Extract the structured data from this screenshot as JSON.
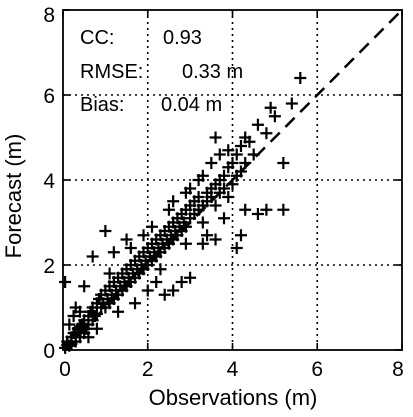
{
  "chart_data": {
    "type": "scatter",
    "xlabel": "Observations (m)",
    "ylabel": "Forecast (m)",
    "xlim": [
      0,
      8
    ],
    "ylim": [
      0,
      8
    ],
    "xticks": [
      "0",
      "2",
      "4",
      "6",
      "8"
    ],
    "yticks": [
      "0",
      "2",
      "4",
      "6",
      "8"
    ],
    "grid": "dotted",
    "marker": "plus",
    "reference_line": {
      "style": "dashed",
      "from": [
        0,
        0
      ],
      "to": [
        8,
        8
      ]
    },
    "stats": [
      {
        "label": "CC:",
        "value": "0.93"
      },
      {
        "label": "RMSE:",
        "value": "0.33 m"
      },
      {
        "label": "Bias:",
        "value": "0.04 m"
      }
    ],
    "points": [
      [
        0.05,
        0.05
      ],
      [
        0.1,
        0.12
      ],
      [
        0.1,
        0.2
      ],
      [
        0.15,
        0.1
      ],
      [
        0.2,
        0.3
      ],
      [
        0.2,
        0.15
      ],
      [
        0.25,
        0.4
      ],
      [
        0.3,
        0.2
      ],
      [
        0.3,
        0.35
      ],
      [
        0.35,
        0.5
      ],
      [
        0.4,
        0.3
      ],
      [
        0.4,
        0.55
      ],
      [
        0.45,
        0.6
      ],
      [
        0.5,
        0.4
      ],
      [
        0.5,
        0.7
      ],
      [
        0.55,
        0.5
      ],
      [
        0.6,
        0.8
      ],
      [
        0.6,
        0.6
      ],
      [
        0.65,
        0.9
      ],
      [
        0.7,
        0.7
      ],
      [
        0.7,
        1.0
      ],
      [
        0.75,
        0.8
      ],
      [
        0.8,
        1.1
      ],
      [
        0.8,
        0.85
      ],
      [
        0.85,
        1.2
      ],
      [
        0.9,
        1.0
      ],
      [
        0.9,
        1.3
      ],
      [
        0.95,
        1.1
      ],
      [
        1.0,
        1.4
      ],
      [
        1.0,
        1.0
      ],
      [
        1.05,
        1.2
      ],
      [
        1.1,
        1.5
      ],
      [
        1.1,
        1.1
      ],
      [
        1.15,
        1.3
      ],
      [
        1.2,
        1.6
      ],
      [
        1.2,
        1.2
      ],
      [
        1.25,
        1.4
      ],
      [
        1.3,
        1.7
      ],
      [
        1.3,
        1.3
      ],
      [
        1.35,
        1.5
      ],
      [
        1.4,
        1.8
      ],
      [
        1.4,
        1.4
      ],
      [
        1.45,
        1.6
      ],
      [
        1.5,
        1.9
      ],
      [
        1.5,
        1.5
      ],
      [
        1.55,
        1.7
      ],
      [
        1.6,
        2.0
      ],
      [
        1.6,
        1.6
      ],
      [
        1.65,
        1.8
      ],
      [
        1.7,
        2.1
      ],
      [
        1.7,
        1.7
      ],
      [
        1.75,
        1.9
      ],
      [
        1.8,
        2.2
      ],
      [
        1.8,
        1.8
      ],
      [
        1.85,
        2.0
      ],
      [
        1.9,
        2.3
      ],
      [
        1.9,
        1.9
      ],
      [
        1.95,
        2.1
      ],
      [
        2.0,
        2.4
      ],
      [
        2.0,
        2.0
      ],
      [
        2.05,
        2.2
      ],
      [
        2.1,
        2.5
      ],
      [
        2.1,
        2.1
      ],
      [
        2.15,
        2.3
      ],
      [
        2.2,
        2.6
      ],
      [
        2.2,
        2.2
      ],
      [
        2.25,
        2.4
      ],
      [
        2.3,
        2.7
      ],
      [
        2.3,
        2.3
      ],
      [
        2.35,
        2.5
      ],
      [
        2.4,
        2.8
      ],
      [
        2.4,
        2.4
      ],
      [
        2.45,
        2.6
      ],
      [
        2.5,
        2.9
      ],
      [
        2.5,
        2.5
      ],
      [
        2.55,
        2.7
      ],
      [
        2.6,
        3.0
      ],
      [
        2.6,
        2.6
      ],
      [
        2.65,
        2.8
      ],
      [
        2.7,
        3.1
      ],
      [
        2.7,
        2.7
      ],
      [
        2.75,
        2.9
      ],
      [
        2.8,
        3.2
      ],
      [
        2.8,
        2.8
      ],
      [
        2.85,
        3.0
      ],
      [
        2.9,
        3.3
      ],
      [
        2.9,
        2.9
      ],
      [
        3.0,
        3.1
      ],
      [
        3.0,
        3.4
      ],
      [
        3.1,
        3.2
      ],
      [
        3.1,
        3.5
      ],
      [
        3.2,
        3.3
      ],
      [
        3.2,
        3.6
      ],
      [
        3.3,
        3.4
      ],
      [
        3.3,
        3.0
      ],
      [
        3.4,
        3.7
      ],
      [
        3.4,
        3.5
      ],
      [
        3.5,
        3.8
      ],
      [
        3.5,
        3.6
      ],
      [
        3.6,
        3.9
      ],
      [
        3.6,
        3.4
      ],
      [
        3.7,
        4.0
      ],
      [
        3.7,
        3.7
      ],
      [
        3.8,
        4.1
      ],
      [
        3.8,
        3.8
      ],
      [
        3.9,
        4.3
      ],
      [
        3.9,
        3.6
      ],
      [
        4.0,
        4.4
      ],
      [
        4.0,
        3.9
      ],
      [
        4.1,
        4.6
      ],
      [
        4.1,
        4.1
      ],
      [
        4.2,
        4.8
      ],
      [
        4.2,
        4.2
      ],
      [
        4.3,
        5.0
      ],
      [
        4.3,
        4.4
      ],
      [
        4.4,
        4.9
      ],
      [
        4.5,
        4.6
      ],
      [
        4.6,
        5.3
      ],
      [
        4.8,
        5.1
      ],
      [
        4.9,
        5.7
      ],
      [
        5.0,
        5.5
      ],
      [
        5.2,
        4.4
      ],
      [
        5.4,
        5.8
      ],
      [
        5.6,
        6.4
      ],
      [
        4.1,
        2.4
      ],
      [
        4.2,
        2.7
      ],
      [
        4.3,
        3.3
      ],
      [
        4.6,
        3.2
      ],
      [
        4.8,
        3.3
      ],
      [
        5.2,
        3.3
      ],
      [
        3.8,
        3.1
      ],
      [
        3.6,
        2.6
      ],
      [
        3.9,
        4.7
      ],
      [
        1.0,
        2.8
      ],
      [
        0.7,
        2.2
      ],
      [
        0.5,
        1.5
      ],
      [
        0.3,
        1.0
      ],
      [
        2.6,
        1.4
      ],
      [
        2.8,
        1.6
      ],
      [
        3.0,
        1.7
      ],
      [
        2.4,
        1.3
      ],
      [
        3.4,
        2.7
      ],
      [
        2.9,
        2.5
      ],
      [
        1.2,
        2.3
      ],
      [
        3.2,
        4.0
      ],
      [
        3.6,
        5.0
      ],
      [
        2.9,
        3.7
      ],
      [
        1.5,
        2.6
      ],
      [
        2.3,
        1.9
      ],
      [
        3.3,
        2.5
      ],
      [
        0.15,
        0.6
      ],
      [
        0.25,
        0.8
      ],
      [
        0.6,
        0.3
      ],
      [
        0.8,
        0.5
      ],
      [
        1.3,
        0.9
      ],
      [
        1.7,
        1.1
      ],
      [
        2.0,
        1.4
      ],
      [
        2.2,
        1.6
      ],
      [
        1.9,
        2.7
      ],
      [
        2.6,
        3.5
      ],
      [
        0.05,
        1.6
      ],
      [
        0.4,
        0.9
      ],
      [
        1.1,
        1.8
      ],
      [
        1.6,
        2.4
      ],
      [
        2.1,
        2.9
      ],
      [
        2.5,
        3.3
      ],
      [
        3.0,
        3.8
      ],
      [
        3.3,
        4.1
      ],
      [
        3.5,
        4.4
      ],
      [
        3.7,
        4.6
      ]
    ]
  }
}
